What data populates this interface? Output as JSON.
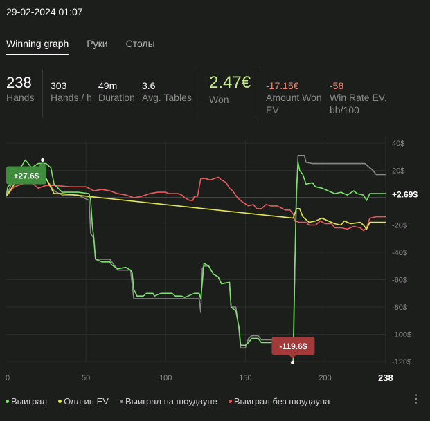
{
  "timestamp": "29-02-2024 01:07",
  "tabs": [
    {
      "label": "Winning graph",
      "active": true
    },
    {
      "label": "Руки",
      "active": false
    },
    {
      "label": "Столы",
      "active": false
    }
  ],
  "stats": {
    "hands": {
      "value": "238",
      "label": "Hands"
    },
    "hands_per_hour": {
      "value": "303",
      "label": "Hands / h"
    },
    "duration": {
      "value": "49m",
      "label": "Duration"
    },
    "avg_tables": {
      "value": "3.6",
      "label": "Avg. Tables"
    },
    "won": {
      "value": "2.47€",
      "label": "Won"
    },
    "amount_won_ev": {
      "value": "-17.15€",
      "label_line1": "Amount Won",
      "label_line2": "EV"
    },
    "win_rate_ev": {
      "value": "-58",
      "label_line1": "Win Rate EV,",
      "label_line2": "bb/100"
    }
  },
  "colors": {
    "won": "#7be36a",
    "allin_ev": "#e6e64a",
    "showdown": "#8a8a8a",
    "non_showdown": "#e85a5a",
    "zero_line": "#6b6b6b"
  },
  "chart_data": {
    "type": "line",
    "x_ticks": [
      "0",
      "50",
      "100",
      "150",
      "200"
    ],
    "x_end_label": "238",
    "y_ticks": [
      "40$",
      "20$",
      "-20$",
      "-40$",
      "-60$",
      "-80$",
      "-100$",
      "-120$"
    ],
    "xlim": [
      0,
      238
    ],
    "ylim": [
      -120,
      40
    ],
    "end_label": "+2.69$",
    "max_annotation": {
      "label": "+27.6$",
      "x": 12,
      "y": 27.6
    },
    "min_annotation": {
      "label": "-119.6$",
      "x": 180,
      "y": -119.6
    },
    "series": [
      {
        "name": "Выиграл",
        "color_key": "won",
        "points": [
          [
            0,
            1
          ],
          [
            1,
            8
          ],
          [
            4,
            12
          ],
          [
            8,
            20
          ],
          [
            12,
            27.6
          ],
          [
            16,
            22
          ],
          [
            20,
            25
          ],
          [
            25,
            25
          ],
          [
            28,
            22
          ],
          [
            30,
            10
          ],
          [
            35,
            4
          ],
          [
            45,
            4
          ],
          [
            52,
            3
          ],
          [
            53,
            -2
          ],
          [
            54,
            -20
          ],
          [
            55,
            -30
          ],
          [
            56,
            -45
          ],
          [
            60,
            -47
          ],
          [
            65,
            -47
          ],
          [
            66,
            -49
          ],
          [
            70,
            -52
          ],
          [
            75,
            -51
          ],
          [
            78,
            -53
          ],
          [
            79,
            -55
          ],
          [
            80,
            -67
          ],
          [
            82,
            -72
          ],
          [
            86,
            -72
          ],
          [
            88,
            -70
          ],
          [
            92,
            -70
          ],
          [
            93,
            -72
          ],
          [
            97,
            -70
          ],
          [
            104,
            -70
          ],
          [
            106,
            -72
          ],
          [
            110,
            -72
          ],
          [
            112,
            -73
          ],
          [
            118,
            -70
          ],
          [
            121,
            -70
          ],
          [
            122,
            -74
          ],
          [
            123,
            -62
          ],
          [
            124,
            -48
          ],
          [
            127,
            -50
          ],
          [
            130,
            -56
          ],
          [
            133,
            -58
          ],
          [
            135,
            -63
          ],
          [
            140,
            -62
          ],
          [
            141,
            -80
          ],
          [
            144,
            -83
          ],
          [
            146,
            -95
          ],
          [
            147,
            -108
          ],
          [
            150,
            -108
          ],
          [
            152,
            -106
          ],
          [
            154,
            -103
          ],
          [
            158,
            -103
          ],
          [
            160,
            -106
          ],
          [
            166,
            -106
          ],
          [
            170,
            -105
          ],
          [
            175,
            -106
          ],
          [
            179,
            -106
          ],
          [
            180,
            -119.6
          ],
          [
            181,
            -50
          ],
          [
            182,
            5
          ],
          [
            183,
            26
          ],
          [
            184,
            20
          ],
          [
            186,
            17
          ],
          [
            188,
            10
          ],
          [
            192,
            11
          ],
          [
            194,
            8
          ],
          [
            198,
            7
          ],
          [
            202,
            5
          ],
          [
            206,
            3
          ],
          [
            210,
            4
          ],
          [
            214,
            2
          ],
          [
            218,
            5
          ],
          [
            220,
            3
          ],
          [
            224,
            2
          ],
          [
            226,
            -2
          ],
          [
            228,
            3
          ],
          [
            232,
            3
          ],
          [
            238,
            3
          ]
        ]
      },
      {
        "name": "Олл-ин EV",
        "color_key": "allin_ev",
        "points": [
          [
            0,
            1
          ],
          [
            8,
            15
          ],
          [
            12,
            18
          ],
          [
            25,
            14
          ],
          [
            30,
            3
          ],
          [
            35,
            3
          ],
          [
            180,
            -15
          ],
          [
            182,
            -8
          ],
          [
            184,
            -8
          ],
          [
            186,
            -14
          ],
          [
            190,
            -18
          ],
          [
            194,
            -17
          ],
          [
            198,
            -15
          ],
          [
            202,
            -17
          ],
          [
            206,
            -19
          ],
          [
            210,
            -20
          ],
          [
            212,
            -17
          ],
          [
            216,
            -19
          ],
          [
            222,
            -18
          ],
          [
            224,
            -20
          ],
          [
            226,
            -23
          ],
          [
            228,
            -18
          ],
          [
            232,
            -18
          ],
          [
            238,
            -18
          ]
        ]
      },
      {
        "name": "Выиграл на шоудауне",
        "color_key": "showdown",
        "points": [
          [
            0,
            1
          ],
          [
            4,
            12
          ],
          [
            8,
            18
          ],
          [
            12,
            22
          ],
          [
            16,
            18
          ],
          [
            20,
            16
          ],
          [
            25,
            14
          ],
          [
            30,
            5
          ],
          [
            35,
            2
          ],
          [
            45,
            2
          ],
          [
            52,
            -2
          ],
          [
            53,
            -26
          ],
          [
            55,
            -30
          ],
          [
            56,
            -45
          ],
          [
            65,
            -45
          ],
          [
            70,
            -53
          ],
          [
            78,
            -53
          ],
          [
            80,
            -74
          ],
          [
            104,
            -74
          ],
          [
            106,
            -74
          ],
          [
            120,
            -74
          ],
          [
            121,
            -74
          ],
          [
            122,
            -84
          ],
          [
            123,
            -52
          ],
          [
            124,
            -50
          ],
          [
            127,
            -50
          ],
          [
            130,
            -56
          ],
          [
            133,
            -58
          ],
          [
            135,
            -63
          ],
          [
            140,
            -62
          ],
          [
            141,
            -80
          ],
          [
            144,
            -80
          ],
          [
            146,
            -97
          ],
          [
            147,
            -110
          ],
          [
            150,
            -110
          ],
          [
            152,
            -103
          ],
          [
            154,
            -101
          ],
          [
            158,
            -101
          ],
          [
            160,
            -104
          ],
          [
            166,
            -104
          ],
          [
            170,
            -105
          ],
          [
            179,
            -105
          ],
          [
            180,
            -110
          ],
          [
            181,
            -50
          ],
          [
            182,
            0
          ],
          [
            183,
            31
          ],
          [
            187,
            31
          ],
          [
            188,
            26
          ],
          [
            192,
            25
          ],
          [
            205,
            25
          ],
          [
            225,
            25
          ],
          [
            228,
            22
          ],
          [
            230,
            20
          ],
          [
            232,
            17
          ],
          [
            236,
            17
          ],
          [
            238,
            17
          ]
        ]
      },
      {
        "name": "Выиграл без шоудауна",
        "color_key": "non_showdown",
        "points": [
          [
            0,
            1
          ],
          [
            5,
            8
          ],
          [
            10,
            10
          ],
          [
            15,
            12
          ],
          [
            20,
            7
          ],
          [
            25,
            9
          ],
          [
            30,
            9
          ],
          [
            40,
            8
          ],
          [
            50,
            8
          ],
          [
            55,
            5
          ],
          [
            60,
            6
          ],
          [
            65,
            5
          ],
          [
            70,
            3
          ],
          [
            75,
            2
          ],
          [
            80,
            0
          ],
          [
            85,
            1
          ],
          [
            90,
            3
          ],
          [
            95,
            4
          ],
          [
            100,
            4
          ],
          [
            102,
            3
          ],
          [
            105,
            3
          ],
          [
            108,
            3
          ],
          [
            110,
            2
          ],
          [
            112,
            0
          ],
          [
            115,
            -2
          ],
          [
            117,
            -2
          ],
          [
            118,
            1
          ],
          [
            120,
            1
          ],
          [
            122,
            14
          ],
          [
            125,
            14
          ],
          [
            128,
            13
          ],
          [
            133,
            15
          ],
          [
            135,
            13
          ],
          [
            138,
            11
          ],
          [
            140,
            7
          ],
          [
            142,
            5
          ],
          [
            145,
            0
          ],
          [
            148,
            -3
          ],
          [
            152,
            -6
          ],
          [
            155,
            -5
          ],
          [
            157,
            -8
          ],
          [
            160,
            -8
          ],
          [
            163,
            -5
          ],
          [
            166,
            -6
          ],
          [
            170,
            -6
          ],
          [
            175,
            -9
          ],
          [
            178,
            -9
          ],
          [
            180,
            -12
          ],
          [
            181,
            -17
          ],
          [
            184,
            -18
          ],
          [
            188,
            -18
          ],
          [
            190,
            -20
          ],
          [
            194,
            -20
          ],
          [
            197,
            -17
          ],
          [
            200,
            -19
          ],
          [
            204,
            -19
          ],
          [
            206,
            -22
          ],
          [
            210,
            -22
          ],
          [
            214,
            -23
          ],
          [
            218,
            -21
          ],
          [
            222,
            -22
          ],
          [
            224,
            -24
          ],
          [
            226,
            -22
          ],
          [
            228,
            -15
          ],
          [
            232,
            -14
          ],
          [
            238,
            -14
          ]
        ]
      }
    ]
  },
  "legend": [
    {
      "label": "Выиграл",
      "color_key": "won"
    },
    {
      "label": "Олл-ин EV",
      "color_key": "allin_ev"
    },
    {
      "label": "Выиграл на шоудауне",
      "color_key": "showdown"
    },
    {
      "label": "Выиграл без шоудауна",
      "color_key": "non_showdown"
    }
  ],
  "menu_icon": "more-vertical-icon"
}
